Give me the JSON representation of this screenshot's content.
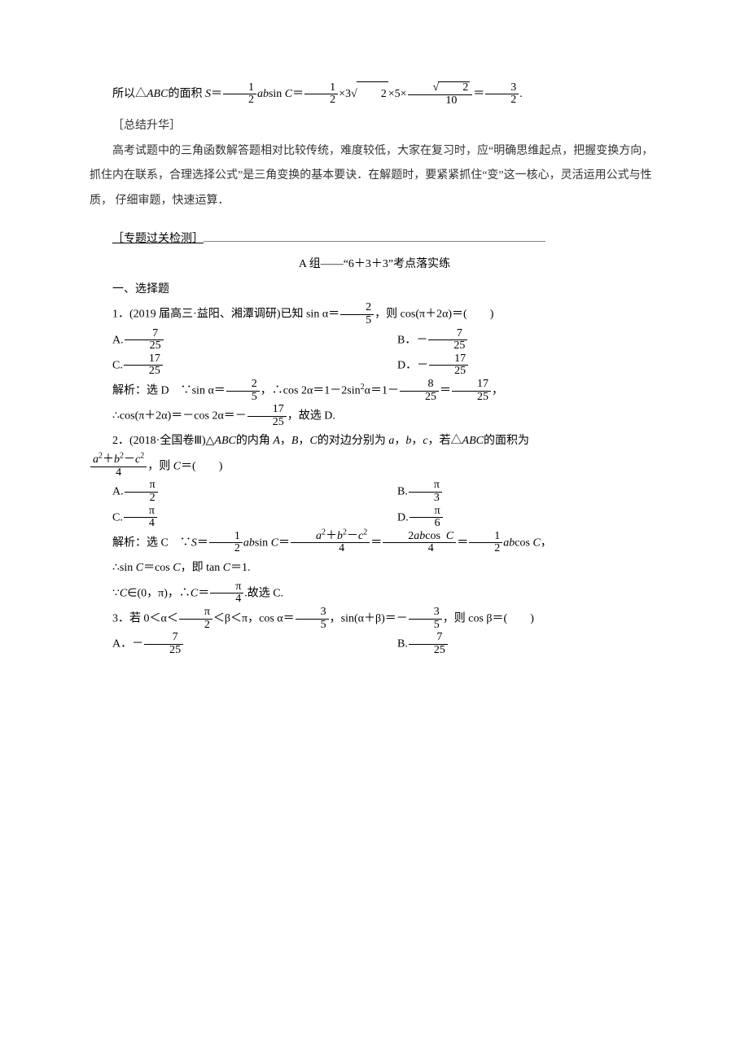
{
  "colors": {
    "text": "#000000",
    "background": "#ffffff",
    "muted": "#333333"
  },
  "typography": {
    "font_family": "SimSun",
    "font_size_pt": 10.5,
    "line_height": 2.2
  },
  "math_line": {
    "prefix": "所以△",
    "tri": "ABC",
    "mid": "的面积 ",
    "S": "S",
    "eq": "＝",
    "half_num": "1",
    "half_den": "2",
    "ab": "ab",
    "sin": "sin ",
    "C": "C",
    "times": "×",
    "three": "3",
    "root2": "2",
    "five": "5",
    "sqrt2_num_root": "2",
    "ten": "10",
    "ans_num": "3",
    "ans_den": "2",
    "period": "."
  },
  "callout": {
    "header": "［总结升华］",
    "body1": "高考试题中的三角函数解答题相对比较传统，难度较低，大家在复习时，应“明确思维起点，把握变换方向，抓住内在联系，合理选择公式”是三角变换的基本要诀．在解题时，要紧紧抓住“变”这一核心，灵活运用公式与性质， 仔细审题，快速运算．"
  },
  "section": {
    "label": "［专题过关检测］",
    "group_title": "A 组——“6＋3＋3”考点落实练",
    "subhead": "一、选择题"
  },
  "q1": {
    "stem_prefix": "1．(2019 届高三·益阳、湘潭调研)已知 sin α＝",
    "sin_num": "2",
    "sin_den": "5",
    "stem_suffix": "，则 cos(π＋2α)＝(　　)",
    "optA_label": "A.",
    "optA_num": "7",
    "optA_den": "25",
    "optB_label": "B．－",
    "optB_num": "7",
    "optB_den": "25",
    "optC_label": "C.",
    "optC_num": "17",
    "optC_den": "25",
    "optD_label": "D．－",
    "optD_num": "17",
    "optD_den": "25",
    "sol_prefix": "解析：选 D　∵sin α＝",
    "sol_sin_num": "2",
    "sol_sin_den": "5",
    "sol_mid1": "，∴cos 2α＝1－2sin",
    "sol_sq": "2",
    "sol_mid1b": "α＝1－",
    "sol_f1_num": "8",
    "sol_f1_den": "25",
    "sol_eq2": "＝",
    "sol_f2_num": "17",
    "sol_f2_den": "25",
    "sol_comma": "，",
    "sol_line2_prefix": "∴cos(π＋2α)＝－cos 2α＝－",
    "sol_line2_num": "17",
    "sol_line2_den": "25",
    "sol_line2_suffix": "，故选 D."
  },
  "q2": {
    "stem1_prefix": "2．(2018·全国卷Ⅲ)△",
    "tri": "ABC",
    "stem1_mid": "的内角 ",
    "A": "A",
    "comma1": "，",
    "B": "B",
    "comma2": "，",
    "C": "C",
    "stem1_mid2": "的对边分别为 ",
    "a": "a",
    "b": "b",
    "c": "c",
    "stem1_suffix": "，若△",
    "stem1_tail": "的面积为",
    "frac_num": "a²＋b²－c²",
    "frac_num_plain_a": "a",
    "frac_num_plain_b": "b",
    "frac_num_plain_c": "c",
    "frac_den": "4",
    "stem2_mid": "，则 ",
    "Cvar": "C",
    "stem2_suffix": "＝(　　)",
    "optA_label": "A.",
    "optA_num": "π",
    "optA_den": "2",
    "optB_label": "B.",
    "optB_num": "π",
    "optB_den": "3",
    "optC_label": "C.",
    "optC_num": "π",
    "optC_den": "4",
    "optD_label": "D.",
    "optD_num": "π",
    "optD_den": "6",
    "sol_prefix": "解析：选 C　∵",
    "S": "S",
    "eq": "＝",
    "half_num": "1",
    "half_den": "2",
    "ab": "ab",
    "sin": "sin ",
    "expr2_num_a": "a",
    "expr2_num_b": "b",
    "expr2_num_c": "c",
    "expr2_den": "4",
    "expr3_num_pre": "2",
    "expr3_num_ab": "ab",
    "expr3_num_cos": "cos ",
    "expr3_num_C": "C",
    "expr3_den": "4",
    "expr4_half_num": "1",
    "expr4_half_den": "2",
    "expr4_ab": "ab",
    "expr4_cos": "cos ",
    "expr4_C": "C",
    "sol_comma": "，",
    "sol_line2": "∴sin ",
    "sol_line2_C1": "C",
    "sol_line2_mid": "＝cos ",
    "sol_line2_C2": "C",
    "sol_line2_mid2": "，即 tan ",
    "sol_line2_C3": "C",
    "sol_line2_tail": "＝1.",
    "sol_line3_pre": "∵",
    "sol_line3_C": "C",
    "sol_line3_in": "∈(0，π)，∴",
    "sol_line3_C2": "C",
    "sol_line3_eq": "＝",
    "sol_line3_num": "π",
    "sol_line3_den": "4",
    "sol_line3_tail": ".故选 C."
  },
  "q3": {
    "stem_prefix": "3．若 0＜α＜",
    "f1_num": "π",
    "f1_den": "2",
    "stem_mid1": "＜β＜π，cos α＝",
    "f2_num": "3",
    "f2_den": "5",
    "stem_mid2": "，sin(α＋β)＝－",
    "f3_num": "3",
    "f3_den": "5",
    "stem_suffix": "，则 cos β＝(　　)",
    "optA_label": "A．－",
    "optA_num": "7",
    "optA_den": "25",
    "optB_label": "B.",
    "optB_num": "7",
    "optB_den": "25"
  }
}
